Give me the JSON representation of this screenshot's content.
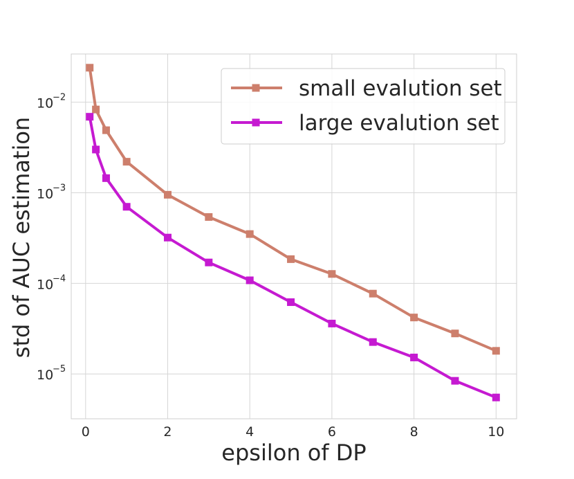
{
  "chart_data": {
    "type": "line",
    "title": "",
    "xlabel": "epsilon of DP",
    "ylabel": "std of AUC estimation",
    "xscale": "linear",
    "yscale": "log",
    "xlim": [
      -0.35,
      10.5
    ],
    "ylim": [
      3.2e-06,
      0.034
    ],
    "xticks": [
      0,
      2,
      4,
      6,
      8,
      10
    ],
    "yticks": [
      {
        "value": 1e-05,
        "base": "10",
        "exponent": "−5"
      },
      {
        "value": 0.0001,
        "base": "10",
        "exponent": "−4"
      },
      {
        "value": 0.001,
        "base": "10",
        "exponent": "−3"
      },
      {
        "value": 0.01,
        "base": "10",
        "exponent": "−2"
      }
    ],
    "grid": true,
    "legend_position": "top-right",
    "series": [
      {
        "name": "small evalution set",
        "color": "#cd7f6c",
        "marker": "square",
        "x": [
          0.1,
          0.25,
          0.5,
          1,
          2,
          3,
          4,
          5,
          6,
          7,
          8,
          9,
          10
        ],
        "y": [
          0.024,
          0.0083,
          0.0049,
          0.0022,
          0.00095,
          0.00054,
          0.00035,
          0.000185,
          0.000127,
          7.7e-05,
          4.2e-05,
          2.8e-05,
          1.8e-05
        ]
      },
      {
        "name": "large evalution set",
        "color": "#c51ad1",
        "marker": "square",
        "x": [
          0.1,
          0.25,
          0.5,
          1,
          2,
          3,
          4,
          5,
          6,
          7,
          8,
          9,
          10
        ],
        "y": [
          0.0069,
          0.003,
          0.00145,
          0.0007,
          0.00032,
          0.00017,
          0.000108,
          6.2e-05,
          3.6e-05,
          2.25e-05,
          1.52e-05,
          8.4e-06,
          5.5e-06
        ]
      }
    ]
  }
}
